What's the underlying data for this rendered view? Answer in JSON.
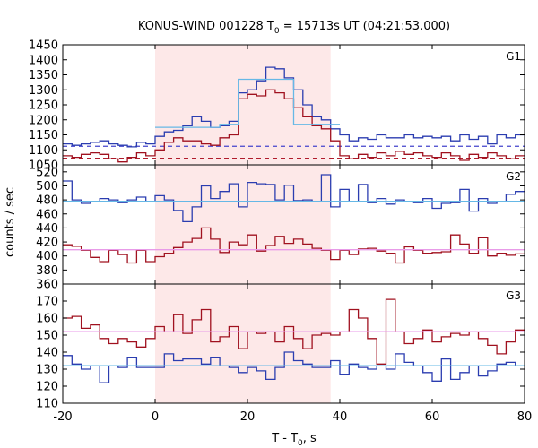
{
  "chart_data": {
    "type": "line",
    "title": "KONUS-WIND 001228 T",
    "title_sub": "0",
    "title_rest": " = 15713s UT (04:21:53.000)",
    "xlabel": "T - T",
    "xlabel_sub": "0",
    "xlabel_rest": ", s",
    "ylabel": "counts / sec",
    "xlim": [
      -20,
      80
    ],
    "x_ticks": [
      "-20",
      "0",
      "20",
      "40",
      "60",
      "80"
    ],
    "x_tick_values": [
      -20,
      0,
      20,
      40,
      60,
      80
    ],
    "shaded_interval": [
      0,
      38
    ],
    "colors": {
      "shade": "#fde8e8",
      "blue": "#2b3db0",
      "red": "#a0111f",
      "cyan": "#66b8e6",
      "pink": "#e89be8",
      "blue_bg": "#4444cc",
      "red_bg": "#b01c2c"
    },
    "bin_edges": [
      -20,
      -18,
      -16,
      -14,
      -12,
      -10,
      -8,
      -6,
      -4,
      -2,
      0,
      2,
      4,
      6,
      8,
      10,
      12,
      14,
      16,
      18,
      20,
      22,
      24,
      26,
      28,
      30,
      32,
      34,
      36,
      38,
      40,
      42,
      44,
      46,
      48,
      50,
      52,
      54,
      56,
      58,
      60,
      62,
      64,
      66,
      68,
      70,
      72,
      74,
      76,
      78,
      80
    ],
    "panels": [
      {
        "label": "G1",
        "ylim": [
          1050,
          1450
        ],
        "y_tick_values": [
          1050,
          1100,
          1150,
          1200,
          1250,
          1300,
          1350,
          1400,
          1450
        ],
        "y_ticks": [
          "1050",
          "1100",
          "1150",
          "1200",
          "1250",
          "1300",
          "1350",
          "1400",
          "1450"
        ],
        "series": [
          {
            "color_key": "blue",
            "values": [
              1120,
              1115,
              1120,
              1125,
              1130,
              1120,
              1115,
              1110,
              1125,
              1120,
              1145,
              1160,
              1165,
              1180,
              1210,
              1195,
              1175,
              1180,
              1195,
              1290,
              1300,
              1330,
              1375,
              1370,
              1340,
              1300,
              1250,
              1210,
              1200,
              1170,
              1150,
              1130,
              1140,
              1135,
              1150,
              1140,
              1140,
              1150,
              1140,
              1145,
              1140,
              1145,
              1130,
              1150,
              1135,
              1145,
              1120,
              1150,
              1140,
              1150
            ]
          },
          {
            "color_key": "red",
            "values": [
              1080,
              1075,
              1085,
              1090,
              1085,
              1070,
              1060,
              1075,
              1090,
              1080,
              1100,
              1125,
              1140,
              1130,
              1130,
              1120,
              1115,
              1140,
              1150,
              1270,
              1285,
              1280,
              1300,
              1290,
              1270,
              1240,
              1210,
              1180,
              1170,
              1130,
              1080,
              1070,
              1085,
              1075,
              1090,
              1080,
              1095,
              1085,
              1090,
              1080,
              1075,
              1090,
              1080,
              1065,
              1085,
              1075,
              1090,
              1080,
              1070,
              1080
            ]
          },
          {
            "color_key": "cyan",
            "values": [
              null,
              null,
              null,
              null,
              null,
              null,
              null,
              null,
              null,
              null,
              1175,
              1175,
              1175,
              1175,
              1175,
              1175,
              1175,
              1185,
              1185,
              1335,
              1335,
              1335,
              1335,
              1335,
              1335,
              1185,
              1185,
              1185,
              1185,
              1185,
              null,
              null,
              null,
              null,
              null,
              null,
              null,
              null,
              null,
              null,
              null,
              null,
              null,
              null,
              null,
              null,
              null,
              null,
              null,
              null
            ]
          }
        ],
        "backgrounds": [
          {
            "color_key": "blue_bg",
            "value": 1112
          },
          {
            "color_key": "red_bg",
            "value": 1072
          }
        ]
      },
      {
        "label": "G2",
        "ylim": [
          360,
          530
        ],
        "y_tick_values": [
          360,
          380,
          400,
          420,
          440,
          460,
          480,
          500,
          520
        ],
        "y_ticks": [
          "360",
          "380",
          "400",
          "420",
          "440",
          "460",
          "480",
          "500",
          "520"
        ],
        "series": [
          {
            "color_key": "blue",
            "values": [
              507,
              480,
              475,
              478,
              482,
              480,
              476,
              480,
              484,
              478,
              486,
              480,
              465,
              449,
              470,
              500,
              482,
              492,
              503,
              470,
              505,
              503,
              502,
              480,
              501,
              479,
              480,
              478,
              516,
              470,
              495,
              478,
              502,
              476,
              482,
              474,
              480,
              478,
              476,
              482,
              468,
              475,
              476,
              495,
              464,
              482,
              475,
              478,
              488,
              492
            ]
          },
          {
            "color_key": "red",
            "values": [
              416,
              414,
              408,
              398,
              392,
              408,
              402,
              390,
              408,
              392,
              399,
              404,
              412,
              420,
              425,
              440,
              424,
              405,
              420,
              416,
              430,
              407,
              415,
              428,
              418,
              424,
              417,
              411,
              408,
              395,
              408,
              402,
              410,
              411,
              407,
              404,
              390,
              413,
              408,
              404,
              405,
              406,
              430,
              417,
              404,
              426,
              400,
              404,
              401,
              403
            ]
          },
          {
            "color_key": "cyan",
            "values": [
              478,
              478,
              478,
              478,
              478,
              478,
              478,
              478,
              478,
              478,
              478,
              478,
              478,
              478,
              478,
              478,
              478,
              478,
              478,
              478,
              478,
              478,
              478,
              478,
              478,
              478,
              478,
              478,
              478,
              478,
              478,
              478,
              478,
              478,
              478,
              478,
              478,
              478,
              478,
              478,
              478,
              478,
              478,
              478,
              478,
              478,
              478,
              478,
              478,
              478
            ]
          },
          {
            "color_key": "pink",
            "values": [
              409,
              409,
              409,
              409,
              409,
              409,
              409,
              409,
              409,
              409,
              409,
              409,
              409,
              409,
              409,
              409,
              409,
              409,
              409,
              409,
              409,
              409,
              409,
              409,
              409,
              409,
              409,
              409,
              409,
              409,
              409,
              409,
              409,
              409,
              409,
              409,
              409,
              409,
              409,
              409,
              409,
              409,
              409,
              409,
              409,
              409,
              409,
              409,
              409,
              409
            ]
          }
        ]
      },
      {
        "label": "G3",
        "ylim": [
          110,
          180
        ],
        "y_tick_values": [
          110,
          120,
          130,
          140,
          150,
          160,
          170
        ],
        "y_ticks": [
          "110",
          "120",
          "130",
          "140",
          "150",
          "160",
          "170"
        ],
        "series": [
          {
            "color_key": "blue",
            "values": [
              138,
              133,
              130,
              132,
              122,
              132,
              131,
              137,
              131,
              131,
              131,
              139,
              135,
              136,
              136,
              133,
              137,
              132,
              131,
              128,
              131,
              129,
              124,
              131,
              140,
              135,
              133,
              131,
              131,
              135,
              127,
              133,
              131,
              130,
              132,
              130,
              139,
              134,
              132,
              128,
              123,
              136,
              124,
              128,
              132,
              126,
              129,
              133,
              134,
              132
            ]
          },
          {
            "color_key": "red",
            "values": [
              160,
              161,
              154,
              156,
              148,
              145,
              148,
              146,
              143,
              148,
              155,
              152,
              162,
              151,
              159,
              165,
              146,
              149,
              155,
              142,
              152,
              151,
              152,
              146,
              155,
              148,
              142,
              150,
              151,
              150,
              152,
              165,
              160,
              148,
              133,
              171,
              152,
              145,
              148,
              153,
              146,
              149,
              151,
              150,
              152,
              148,
              144,
              139,
              146,
              153
            ]
          },
          {
            "color_key": "cyan",
            "values": [
              132,
              132,
              132,
              132,
              132,
              132,
              132,
              132,
              132,
              132,
              132,
              132,
              132,
              132,
              132,
              132,
              132,
              132,
              132,
              132,
              132,
              132,
              132,
              132,
              132,
              132,
              132,
              132,
              132,
              132,
              132,
              132,
              132,
              132,
              132,
              132,
              132,
              132,
              132,
              132,
              132,
              132,
              132,
              132,
              132,
              132,
              132,
              132,
              132,
              132
            ]
          },
          {
            "color_key": "pink",
            "values": [
              152,
              152,
              152,
              152,
              152,
              152,
              152,
              152,
              152,
              152,
              152,
              152,
              152,
              152,
              152,
              152,
              152,
              152,
              152,
              152,
              152,
              152,
              152,
              152,
              152,
              152,
              152,
              152,
              152,
              152,
              152,
              152,
              152,
              152,
              152,
              152,
              152,
              152,
              152,
              152,
              152,
              152,
              152,
              152,
              152,
              152,
              152,
              152,
              152,
              152
            ]
          }
        ]
      }
    ]
  }
}
